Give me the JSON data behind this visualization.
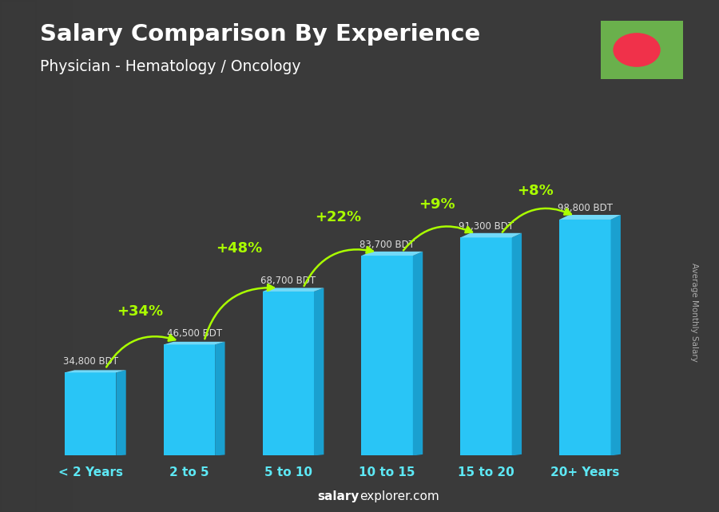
{
  "title1": "Salary Comparison By Experience",
  "title2": "Physician - Hematology / Oncology",
  "categories": [
    "< 2 Years",
    "2 to 5",
    "5 to 10",
    "10 to 15",
    "15 to 20",
    "20+ Years"
  ],
  "values": [
    34800,
    46500,
    68700,
    83700,
    91300,
    98800
  ],
  "bar_color_main": "#29C5F6",
  "bar_color_light": "#72D9F8",
  "bar_color_dark": "#1AA0D0",
  "bg_color": "#3a3a3a",
  "text_color": "#ffffff",
  "tick_color": "#5DE8F5",
  "label_color": "#dddddd",
  "pct_color": "#aaff00",
  "value_labels": [
    "34,800 BDT",
    "46,500 BDT",
    "68,700 BDT",
    "83,700 BDT",
    "91,300 BDT",
    "98,800 BDT"
  ],
  "pct_labels": [
    "+34%",
    "+48%",
    "+22%",
    "+9%",
    "+8%"
  ],
  "footer_bold": "salary",
  "footer_normal": "explorer.com",
  "ylabel": "Average Monthly Salary",
  "ylim": [
    0,
    120000
  ],
  "flag_green": "#6ab04c",
  "flag_red": "#f0314a"
}
